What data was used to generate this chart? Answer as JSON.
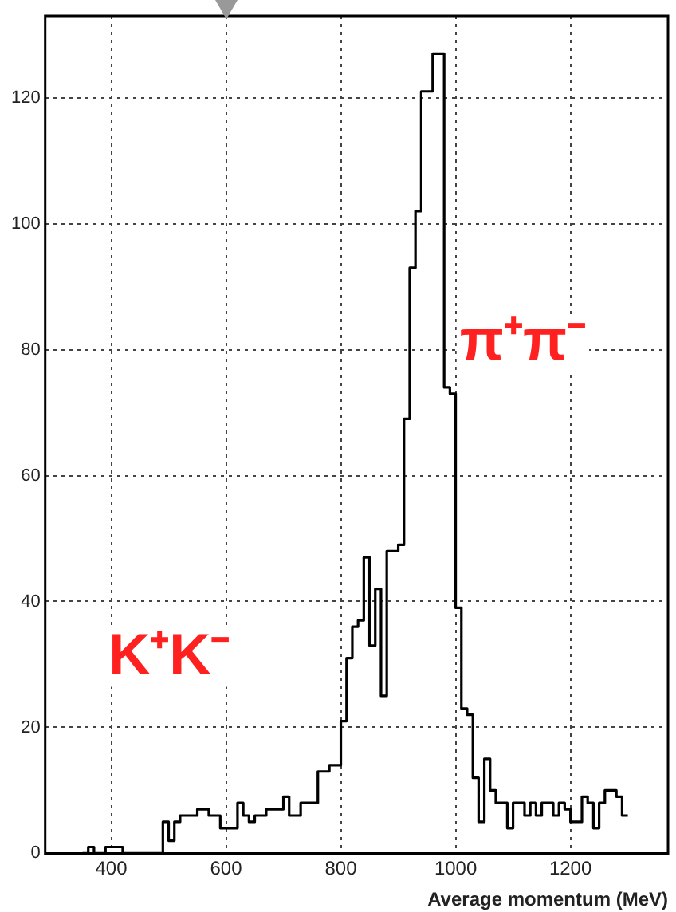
{
  "chart_data": {
    "type": "histogram",
    "xlabel": "Average momentum (MeV)",
    "bins": [
      350,
      360,
      370,
      380,
      390,
      400,
      410,
      420,
      430,
      440,
      450,
      460,
      470,
      480,
      490,
      500,
      510,
      520,
      530,
      540,
      550,
      560,
      570,
      580,
      590,
      600,
      610,
      620,
      630,
      640,
      650,
      660,
      670,
      680,
      690,
      700,
      710,
      720,
      730,
      740,
      750,
      760,
      770,
      780,
      790,
      800,
      810,
      820,
      830,
      840,
      850,
      860,
      870,
      880,
      890,
      900,
      910,
      920,
      930,
      940,
      950,
      960,
      970,
      980,
      990,
      1000,
      1010,
      1020,
      1030,
      1040,
      1050,
      1060,
      1070,
      1080,
      1090,
      1100,
      1110,
      1120,
      1130,
      1140,
      1150,
      1160,
      1170,
      1180,
      1190,
      1200,
      1210,
      1220,
      1230,
      1240,
      1250,
      1260,
      1270,
      1280,
      1290,
      1300
    ],
    "values": [
      0,
      1,
      0,
      0,
      1,
      1,
      1,
      0,
      0,
      0,
      0,
      0,
      0,
      0,
      5,
      2,
      5,
      6,
      6,
      6,
      7,
      7,
      6,
      6,
      4,
      4,
      4,
      8,
      6,
      5,
      6,
      6,
      7,
      7,
      7,
      9,
      6,
      6,
      8,
      8,
      8,
      13,
      13,
      14,
      14,
      21,
      31,
      36,
      37,
      47,
      33,
      42,
      25,
      48,
      48,
      49,
      69,
      93,
      102,
      121,
      121,
      127,
      127,
      74,
      73,
      39,
      23,
      22,
      12,
      5,
      15,
      10,
      8,
      8,
      4,
      8,
      8,
      6,
      8,
      6,
      8,
      8,
      6,
      8,
      7,
      5,
      5,
      9,
      8,
      4,
      8,
      10,
      10,
      9,
      6
    ],
    "color": "#000000",
    "xlim": [
      285,
      1370
    ],
    "ylim": [
      0,
      133
    ],
    "xticks": [
      400,
      600,
      800,
      1000,
      1200
    ],
    "yticks": [
      0,
      20,
      40,
      60,
      80,
      100,
      120
    ],
    "grid": true,
    "annotations": [
      {
        "text": "K⁺K⁻",
        "x": 815,
        "y": 31
      },
      {
        "text": "π⁺π⁻",
        "x": 985,
        "y": 81
      }
    ]
  }
}
